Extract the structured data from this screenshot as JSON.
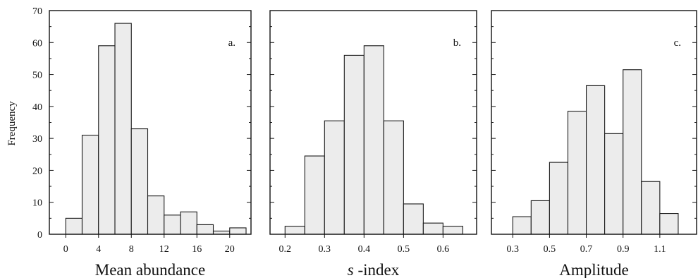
{
  "figure": {
    "ylabel": "Frequency",
    "yticks": [
      "0",
      "10",
      "20",
      "30",
      "40",
      "50",
      "60",
      "70"
    ]
  },
  "chart_data": [
    {
      "type": "bar",
      "panel_label": "a.",
      "xlabel": "Mean abundance",
      "ylabel": "Frequency",
      "ylim": [
        0,
        70
      ],
      "xlim": [
        -2,
        22.6
      ],
      "bin_width": 2,
      "bin_starts": [
        0,
        2,
        4,
        6,
        8,
        10,
        12,
        14,
        16,
        18,
        20
      ],
      "values": [
        5,
        31,
        59,
        66,
        33,
        12,
        6,
        7,
        3,
        1,
        2
      ],
      "xticks": [
        "0",
        "4",
        "8",
        "12",
        "16",
        "20"
      ],
      "xtick_values": [
        0,
        4,
        8,
        12,
        16,
        20
      ]
    },
    {
      "type": "bar",
      "panel_label": "b.",
      "xlabel": "-index",
      "xlabel_italic": "s",
      "ylabel": "Frequency",
      "ylim": [
        0,
        70
      ],
      "xlim": [
        0.162,
        0.685
      ],
      "bin_width": 0.05,
      "bin_starts": [
        0.2,
        0.25,
        0.3,
        0.35,
        0.4,
        0.45,
        0.5,
        0.55,
        0.6
      ],
      "values": [
        2.5,
        24.5,
        35.5,
        56,
        59,
        35.5,
        9.5,
        3.5,
        2.5
      ],
      "xticks": [
        "0.2",
        "0.3",
        "0.4",
        "0.5",
        "0.6"
      ],
      "xtick_values": [
        0.2,
        0.3,
        0.4,
        0.5,
        0.6
      ]
    },
    {
      "type": "bar",
      "panel_label": "c.",
      "xlabel": "Amplitude",
      "ylabel": "Frequency",
      "ylim": [
        0,
        70
      ],
      "xlim": [
        0.184,
        1.3
      ],
      "bin_width": 0.1,
      "bin_starts": [
        0.3,
        0.4,
        0.5,
        0.6,
        0.7,
        0.8,
        0.9,
        1.0,
        1.1
      ],
      "values": [
        5.5,
        10.5,
        22.5,
        38.5,
        46.5,
        31.5,
        51.5,
        16.5,
        6.5
      ],
      "xticks": [
        "0.3",
        "0.5",
        "0.7",
        "0.9",
        "1.1"
      ],
      "xtick_values": [
        0.3,
        0.5,
        0.7,
        0.9,
        1.1
      ]
    }
  ]
}
